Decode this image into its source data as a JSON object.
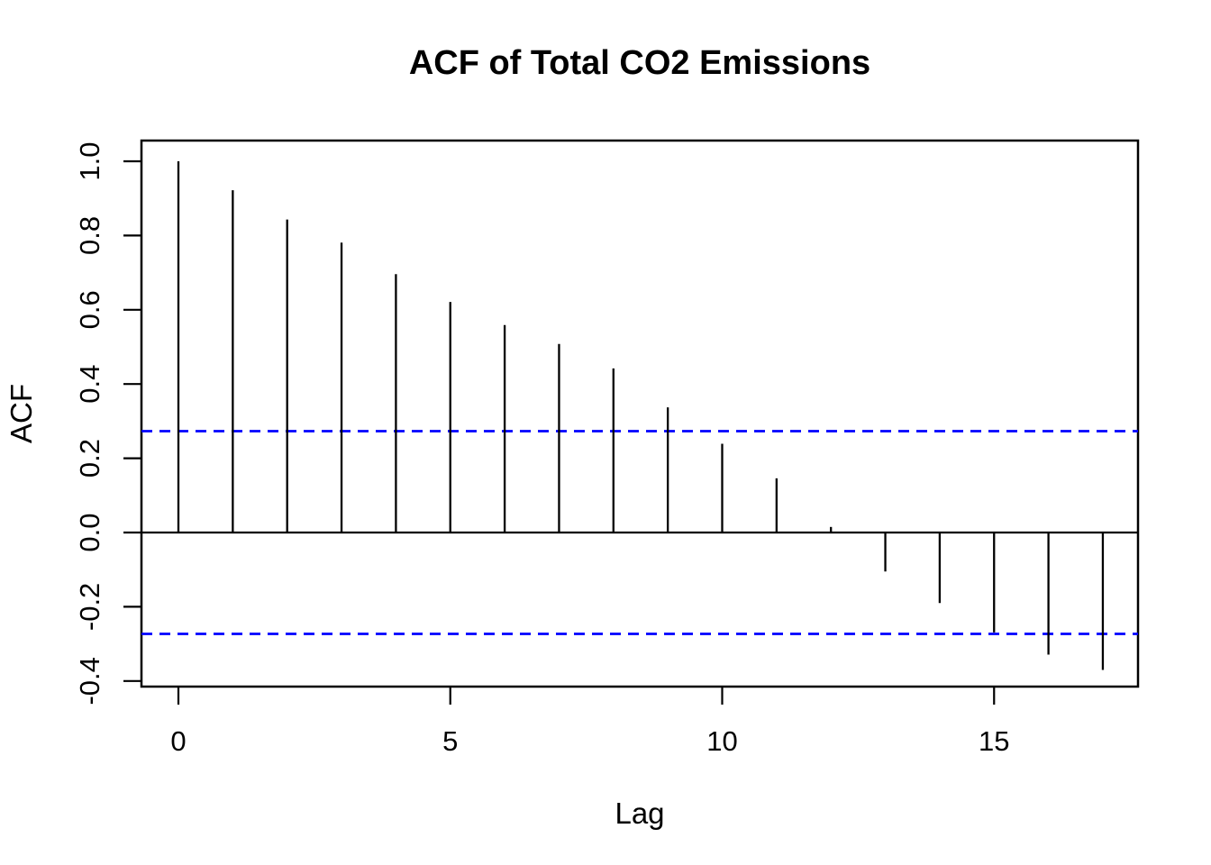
{
  "chart_data": {
    "type": "bar",
    "subtype": "acf-stem-plot",
    "title": "ACF of Total CO2 Emissions",
    "xlabel": "Lag",
    "ylabel": "ACF",
    "x": [
      0,
      1,
      2,
      3,
      4,
      5,
      6,
      7,
      8,
      9,
      10,
      11,
      12,
      13,
      14,
      15,
      16,
      17
    ],
    "values": [
      1.0,
      0.922,
      0.843,
      0.781,
      0.696,
      0.621,
      0.559,
      0.508,
      0.442,
      0.337,
      0.239,
      0.146,
      0.015,
      -0.105,
      -0.19,
      -0.269,
      -0.329,
      -0.37
    ],
    "zero_line": 0.0,
    "confidence_bounds": {
      "upper": 0.273,
      "lower": -0.273,
      "line_style": "dashed",
      "color": "#0000FF"
    },
    "xticks": {
      "values": [
        0,
        5,
        10,
        15
      ],
      "labels": [
        "0",
        "5",
        "10",
        "15"
      ]
    },
    "yticks": {
      "values": [
        -0.4,
        -0.2,
        0.0,
        0.2,
        0.4,
        0.6,
        0.8,
        1.0
      ],
      "labels": [
        "-0.4",
        "-0.2",
        "0.0",
        "0.2",
        "0.4",
        "0.6",
        "0.8",
        "1.0"
      ]
    },
    "xlim": [
      -0.68,
      17.66
    ],
    "ylim": [
      -0.415,
      1.056
    ],
    "grid": false,
    "colors": {
      "stem": "#000000",
      "confidence": "#0000FF",
      "axis": "#000000",
      "background": "#FFFFFF"
    }
  }
}
